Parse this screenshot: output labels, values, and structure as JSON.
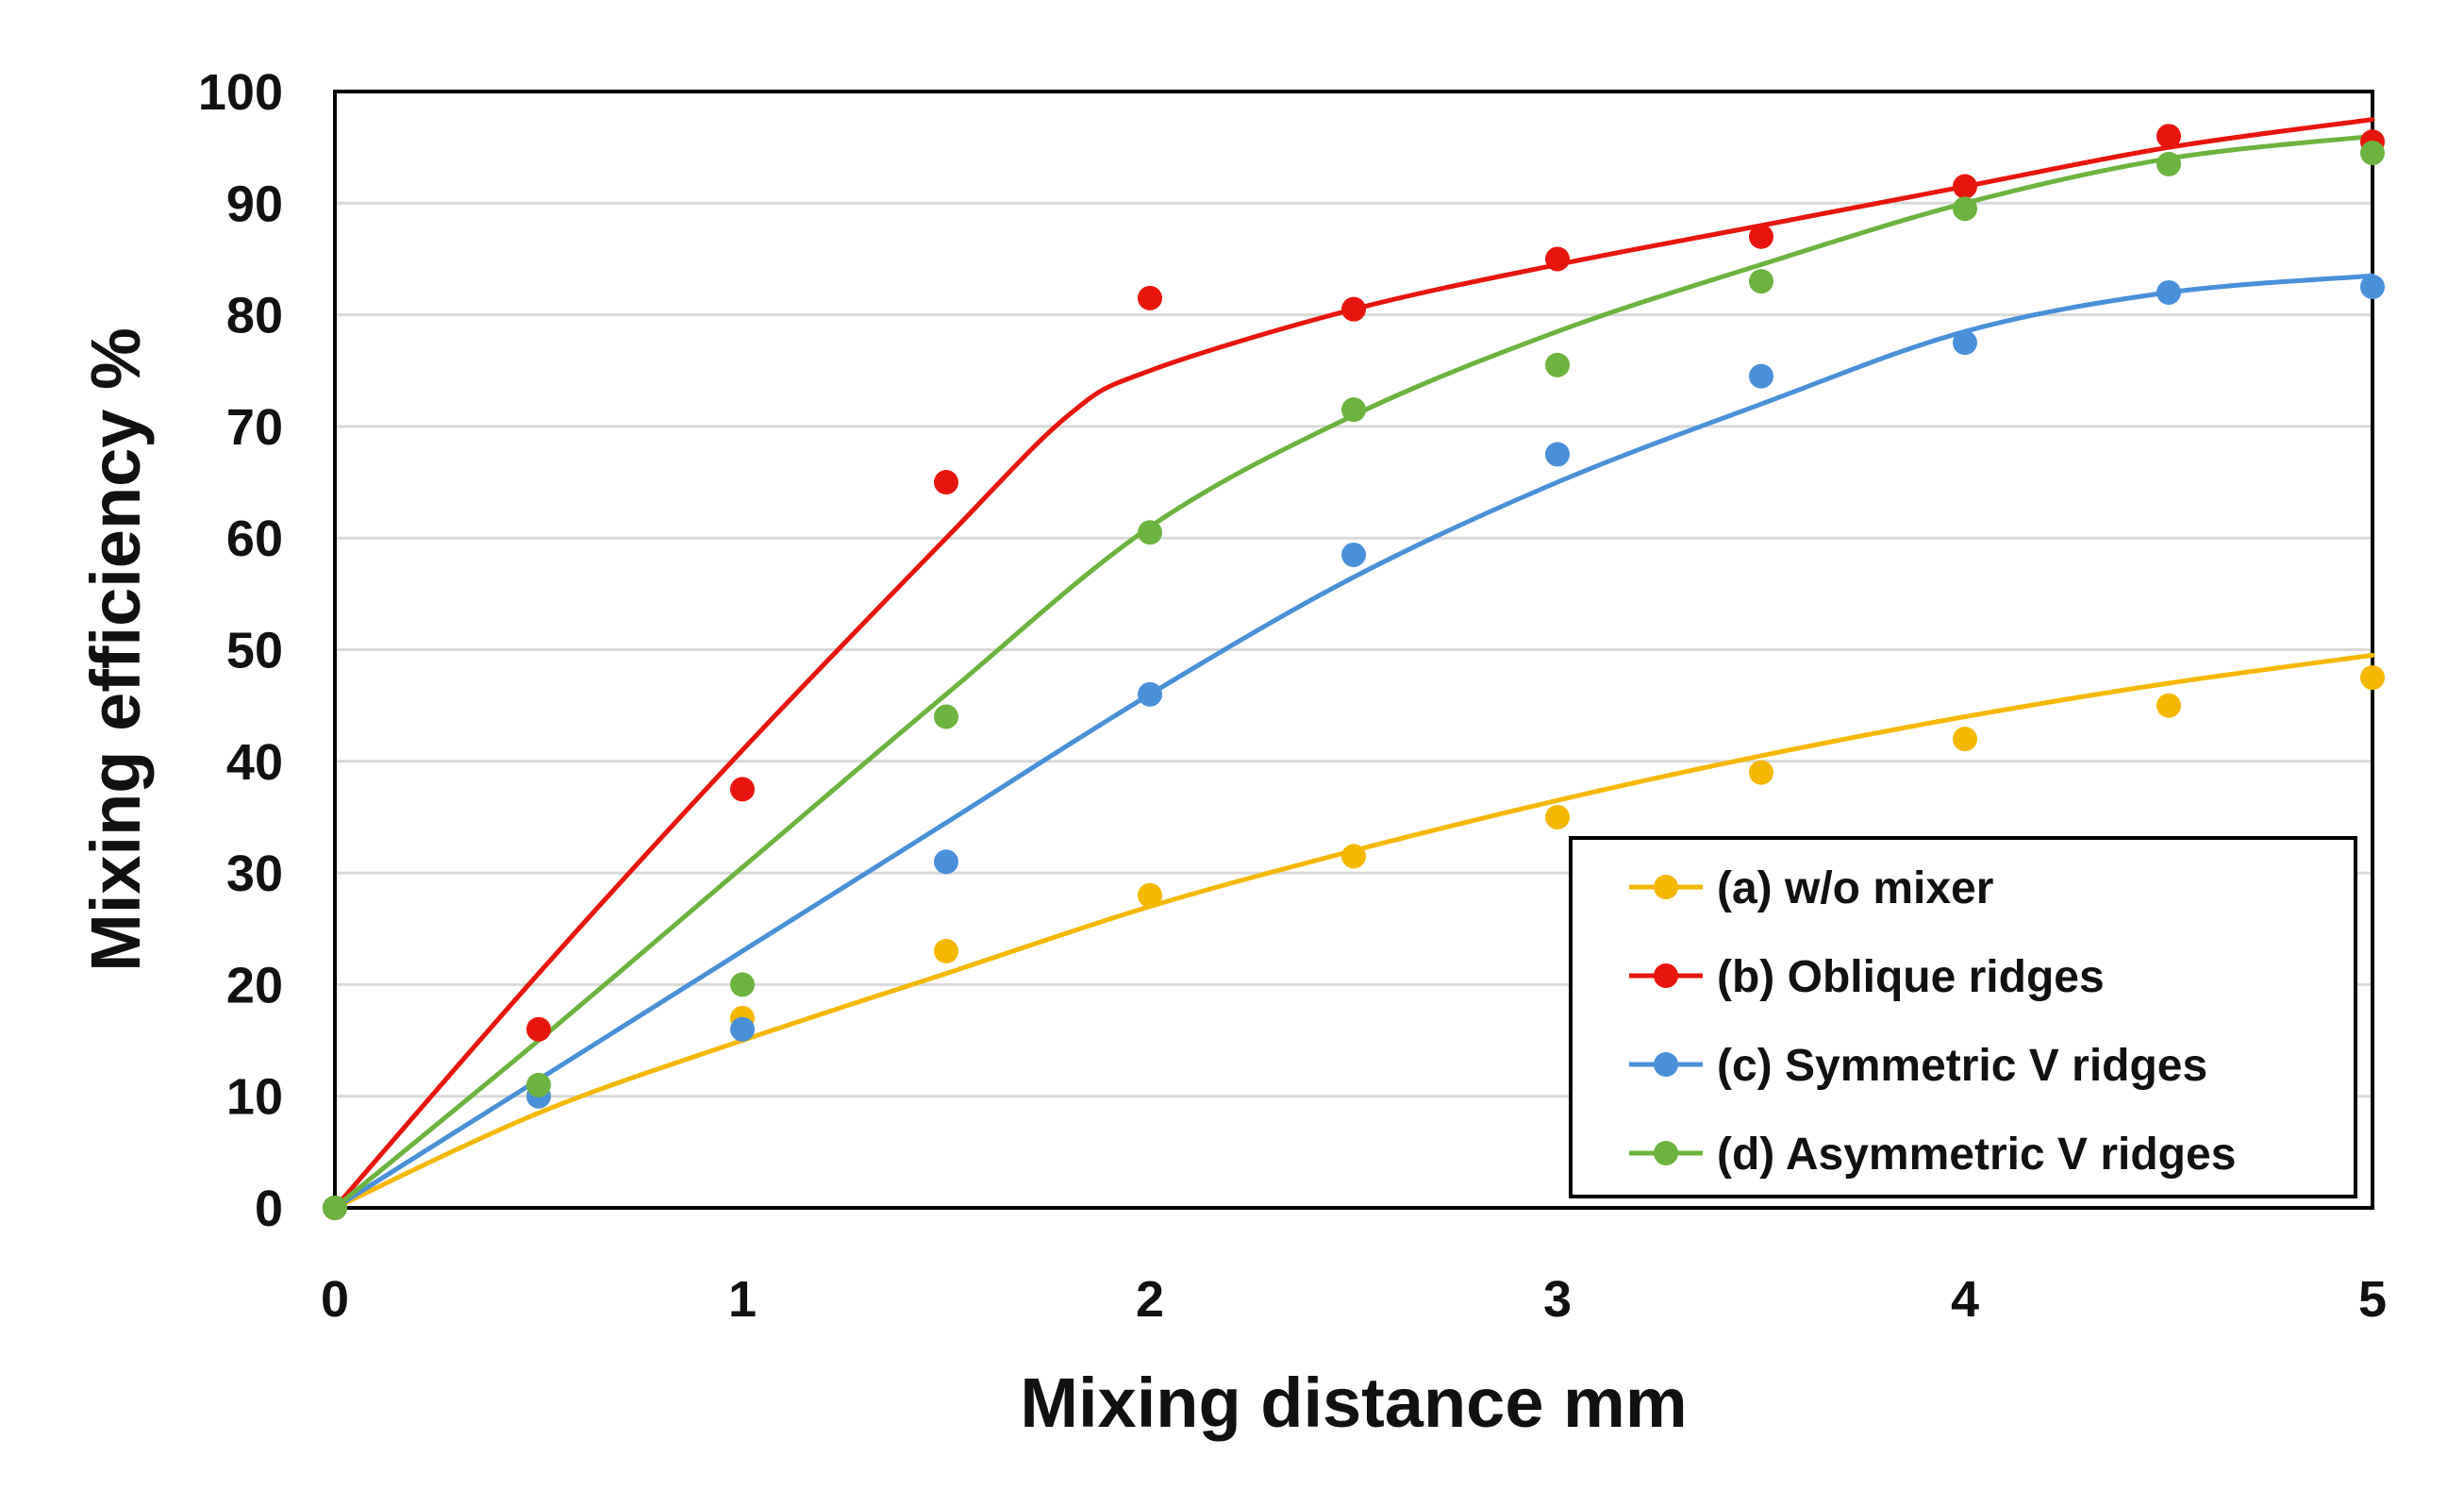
{
  "chart_data": {
    "type": "scatter",
    "title": "",
    "xlabel": "Mixing distance  mm",
    "ylabel": "Mixing efficiency  %",
    "xlim": [
      0,
      5
    ],
    "ylim": [
      0,
      100
    ],
    "xticks": [
      "0",
      "1",
      "2",
      "3",
      "4",
      "5"
    ],
    "yticks": [
      "0",
      "10",
      "20",
      "30",
      "40",
      "50",
      "60",
      "70",
      "80",
      "90",
      "100"
    ],
    "grid": true,
    "legend_position": "lower-right",
    "series": [
      {
        "name": "(a) w/o mixer",
        "color": "#F5B800",
        "points": {
          "x": [
            0,
            0.5,
            1,
            1.5,
            2,
            2.5,
            3,
            3.5,
            4,
            4.5,
            5
          ],
          "y": [
            0,
            10,
            17,
            23,
            28,
            31.5,
            35,
            39,
            42,
            45,
            47.5
          ]
        },
        "fit": {
          "x": [
            0,
            0.5,
            1,
            1.5,
            2,
            2.5,
            3,
            3.5,
            4,
            4.5,
            5
          ],
          "y": [
            0,
            8.5,
            15,
            21,
            27,
            32,
            36.5,
            40.5,
            44,
            47,
            49.5
          ]
        }
      },
      {
        "name": "(b) Oblique ridges",
        "color": "#E8150E",
        "points": {
          "x": [
            0,
            0.5,
            1,
            1.5,
            2,
            2.5,
            3,
            3.5,
            4,
            4.5,
            5
          ],
          "y": [
            0,
            16,
            37.5,
            65,
            81.5,
            80.5,
            85,
            87,
            91.5,
            96,
            95.5
          ]
        },
        "fit": {
          "x": [
            0,
            0.5,
            1,
            1.5,
            1.8,
            2,
            2.5,
            3,
            3.5,
            4,
            4.5,
            5
          ],
          "y": [
            0,
            21,
            41,
            60,
            71,
            75,
            80.5,
            84.5,
            88,
            91.5,
            95,
            97.5
          ]
        }
      },
      {
        "name": "(c) Symmetric V ridges",
        "color": "#4A90D9",
        "points": {
          "x": [
            0,
            0.5,
            1,
            1.5,
            2,
            2.5,
            3,
            3.5,
            4,
            4.5,
            5
          ],
          "y": [
            0,
            10,
            16,
            31,
            46,
            58.5,
            67.5,
            74.5,
            77.5,
            82,
            82.5
          ]
        },
        "fit": {
          "x": [
            0,
            0.5,
            1,
            1.5,
            2,
            2.5,
            3,
            3.5,
            4,
            4.5,
            5
          ],
          "y": [
            0,
            11.5,
            23,
            34.5,
            46,
            56.5,
            65,
            72,
            78.5,
            82,
            83.5
          ]
        }
      },
      {
        "name": "(d) Asymmetric V ridges",
        "color": "#6DB33F",
        "points": {
          "x": [
            0,
            0.5,
            1,
            1.5,
            2,
            2.5,
            3,
            3.5,
            4,
            4.5,
            5
          ],
          "y": [
            0,
            11,
            20,
            44,
            60.5,
            71.5,
            75.5,
            83,
            89.5,
            93.5,
            94.5
          ]
        },
        "fit": {
          "x": [
            0,
            0.5,
            1,
            1.5,
            2,
            2.5,
            3,
            3.5,
            4,
            4.5,
            5
          ],
          "y": [
            0,
            15,
            30.5,
            46,
            61,
            71,
            78.5,
            84.5,
            90,
            94,
            96
          ]
        }
      }
    ]
  }
}
